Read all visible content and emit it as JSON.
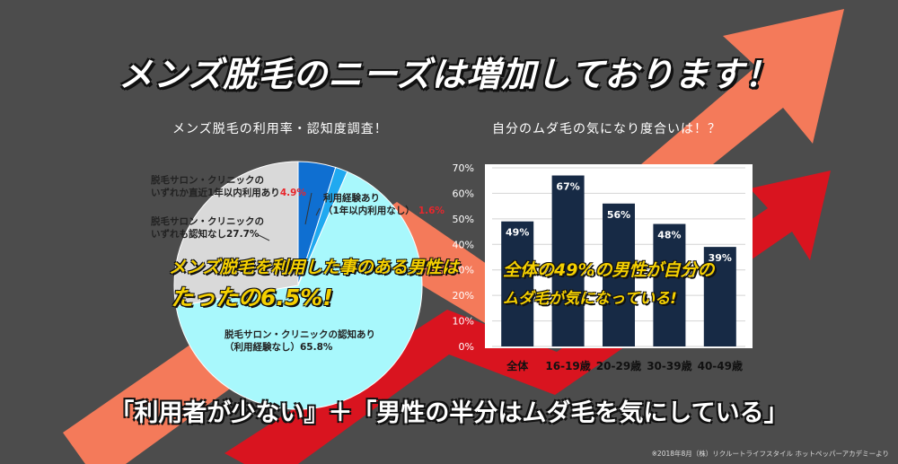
{
  "title": "メンズ脱毛のニーズは増加しております！",
  "bottom_text": "「利用者が少ない』＋「男性の半分はムダ毛を気にしている」",
  "source_note": "※2018年8月（株）リクルートライフスタイル ホットペッパーアカデミーより",
  "colors": {
    "background": "#4c4c4c",
    "arrow_orange": "#f47a5a",
    "arrow_red": "#d9141f",
    "bar_fill": "#172a45",
    "pie_blue_dark": "#0f6fd1",
    "pie_blue_light": "#20a9f0",
    "pie_cyan": "#a8f8fc",
    "pie_gray": "#d9d9d9",
    "callout_yellow": "#f5d000",
    "accent_red": "#e8262c"
  },
  "chart_data": [
    {
      "type": "pie",
      "title": "メンズ脱毛の利用率・認知度調査！",
      "slices": [
        {
          "label_lines": [
            "脱毛サロン・クリニックの",
            "いずれか直近1年以内利用あり"
          ],
          "value": 4.9,
          "value_label": "4.9%",
          "color": "#0f6fd1"
        },
        {
          "label_lines": [
            "利用経験あり",
            "（1年以内利用なし）"
          ],
          "value": 1.6,
          "value_label": "1.6%",
          "color": "#20a9f0"
        },
        {
          "label_lines": [
            "脱毛サロン・クリニックの認知あり",
            "（利用経験なし）65.8%"
          ],
          "value": 65.8,
          "value_label": "",
          "color": "#a8f8fc"
        },
        {
          "label_lines": [
            "脱毛サロン・クリニックの",
            "いずれも認知なし27.7%"
          ],
          "value": 27.7,
          "value_label": "",
          "color": "#d9d9d9"
        }
      ],
      "callout": [
        "メンズ脱毛を利用した事のある男性は",
        "たったの6.5%!"
      ]
    },
    {
      "type": "bar",
      "title": "自分のムダ毛の気になり度合いは！？",
      "categories": [
        "全体",
        "16-19歳",
        "20-29歳",
        "30-39歳",
        "40-49歳"
      ],
      "values": [
        49,
        67,
        56,
        48,
        39
      ],
      "value_labels": [
        "49%",
        "67%",
        "56%",
        "48%",
        "39%"
      ],
      "ylim": [
        0,
        70
      ],
      "yticks": [
        "0%",
        "10%",
        "20%",
        "30%",
        "40%",
        "50%",
        "60%",
        "70%"
      ],
      "ytick_values": [
        0,
        10,
        20,
        30,
        40,
        50,
        60,
        70
      ],
      "callout": [
        "全体の49%の男性が自分の",
        "ムダ毛が気になっている!"
      ]
    }
  ]
}
